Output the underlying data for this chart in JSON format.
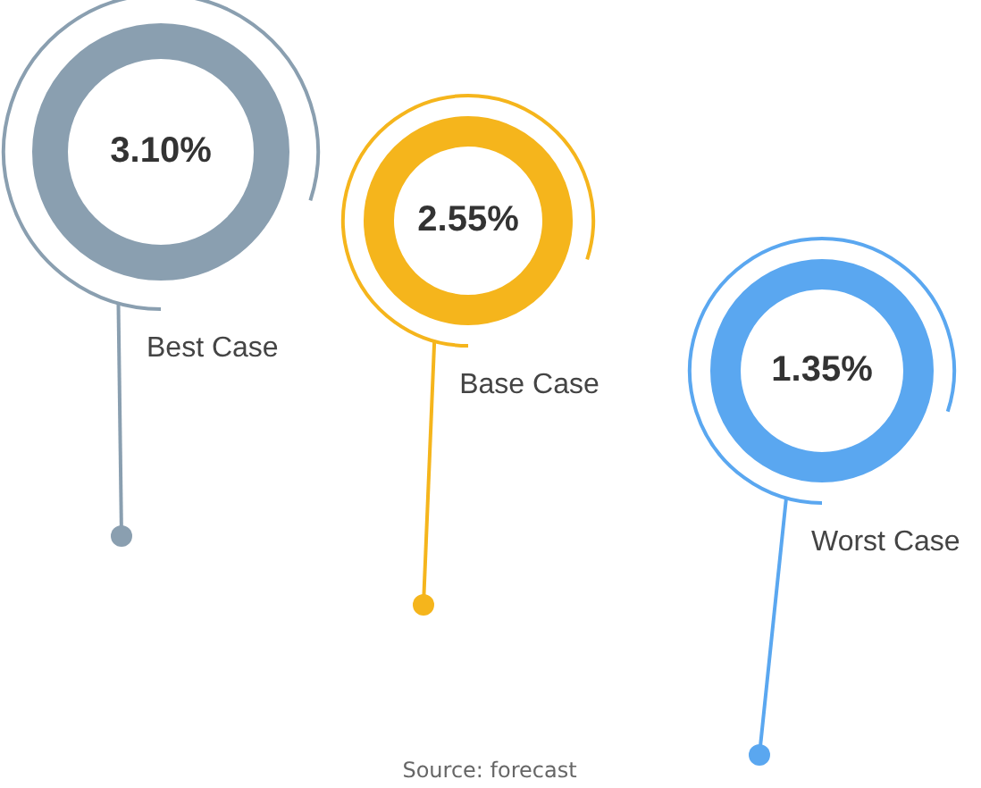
{
  "chart_data": {
    "type": "other",
    "categories": [
      "Best Case",
      "Base Case",
      "Worst Case"
    ],
    "values": [
      3.1,
      2.55,
      1.35
    ],
    "value_labels": [
      "3.10%",
      "2.55%",
      "1.35%"
    ],
    "colors": [
      "#8a9fb0",
      "#f5b51c",
      "#5aa7f0"
    ],
    "annotations": [
      "Source: forecast"
    ]
  }
}
